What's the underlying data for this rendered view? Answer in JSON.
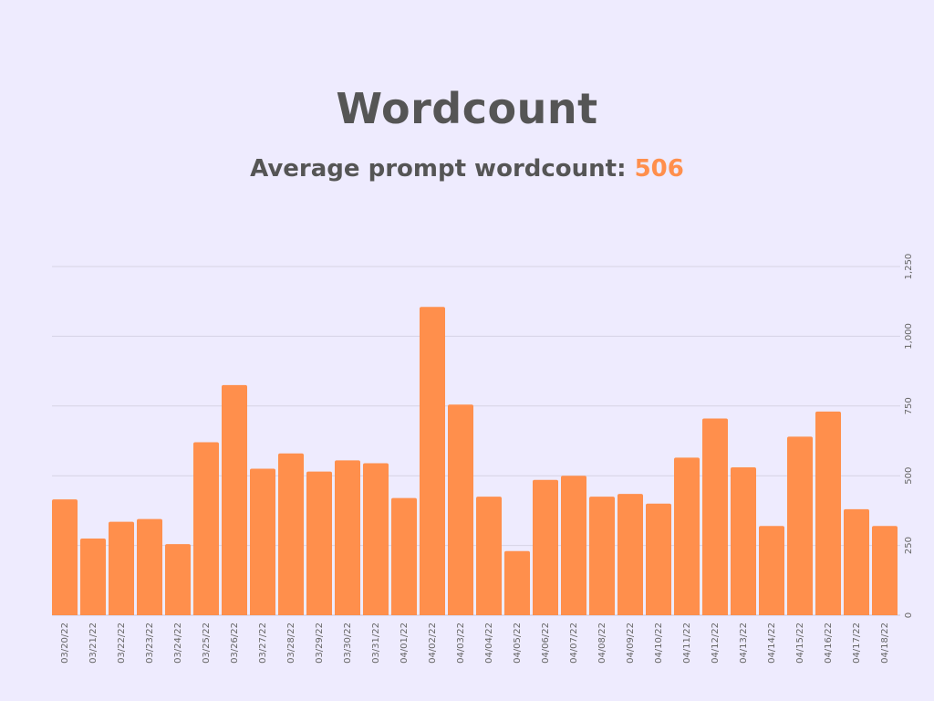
{
  "header": {
    "title": "Wordcount",
    "subtitle_prefix": "Average prompt wordcount:",
    "subtitle_value": "506"
  },
  "colors": {
    "background": "#eeebfe",
    "bar": "#ff8f4c",
    "text": "#555555",
    "accent": "#ff8f4c"
  },
  "chart_data": {
    "type": "bar",
    "title": "Wordcount",
    "subtitle": "Average prompt wordcount: 506",
    "xlabel": "",
    "ylabel": "",
    "ylim": [
      0,
      1250
    ],
    "y_axis_side": "right",
    "y_ticks": [
      0,
      250,
      500,
      750,
      1000,
      1250
    ],
    "y_tick_labels": [
      "0",
      "250",
      "500",
      "750",
      "1,000",
      "1,250"
    ],
    "grid": true,
    "categories": [
      "03/20/22",
      "03/21/22",
      "03/22/22",
      "03/23/22",
      "03/24/22",
      "03/25/22",
      "03/26/22",
      "03/27/22",
      "03/28/22",
      "03/29/22",
      "03/30/22",
      "03/31/22",
      "04/01/22",
      "04/02/22",
      "04/03/22",
      "04/04/22",
      "04/05/22",
      "04/06/22",
      "04/07/22",
      "04/08/22",
      "04/09/22",
      "04/10/22",
      "04/11/22",
      "04/12/22",
      "04/13/22",
      "04/14/22",
      "04/15/22",
      "04/16/22",
      "04/17/22",
      "04/18/22"
    ],
    "values": [
      415,
      275,
      335,
      345,
      255,
      620,
      825,
      525,
      580,
      515,
      555,
      545,
      420,
      1105,
      755,
      425,
      230,
      485,
      500,
      425,
      435,
      400,
      565,
      705,
      530,
      320,
      640,
      730,
      380,
      320
    ]
  }
}
